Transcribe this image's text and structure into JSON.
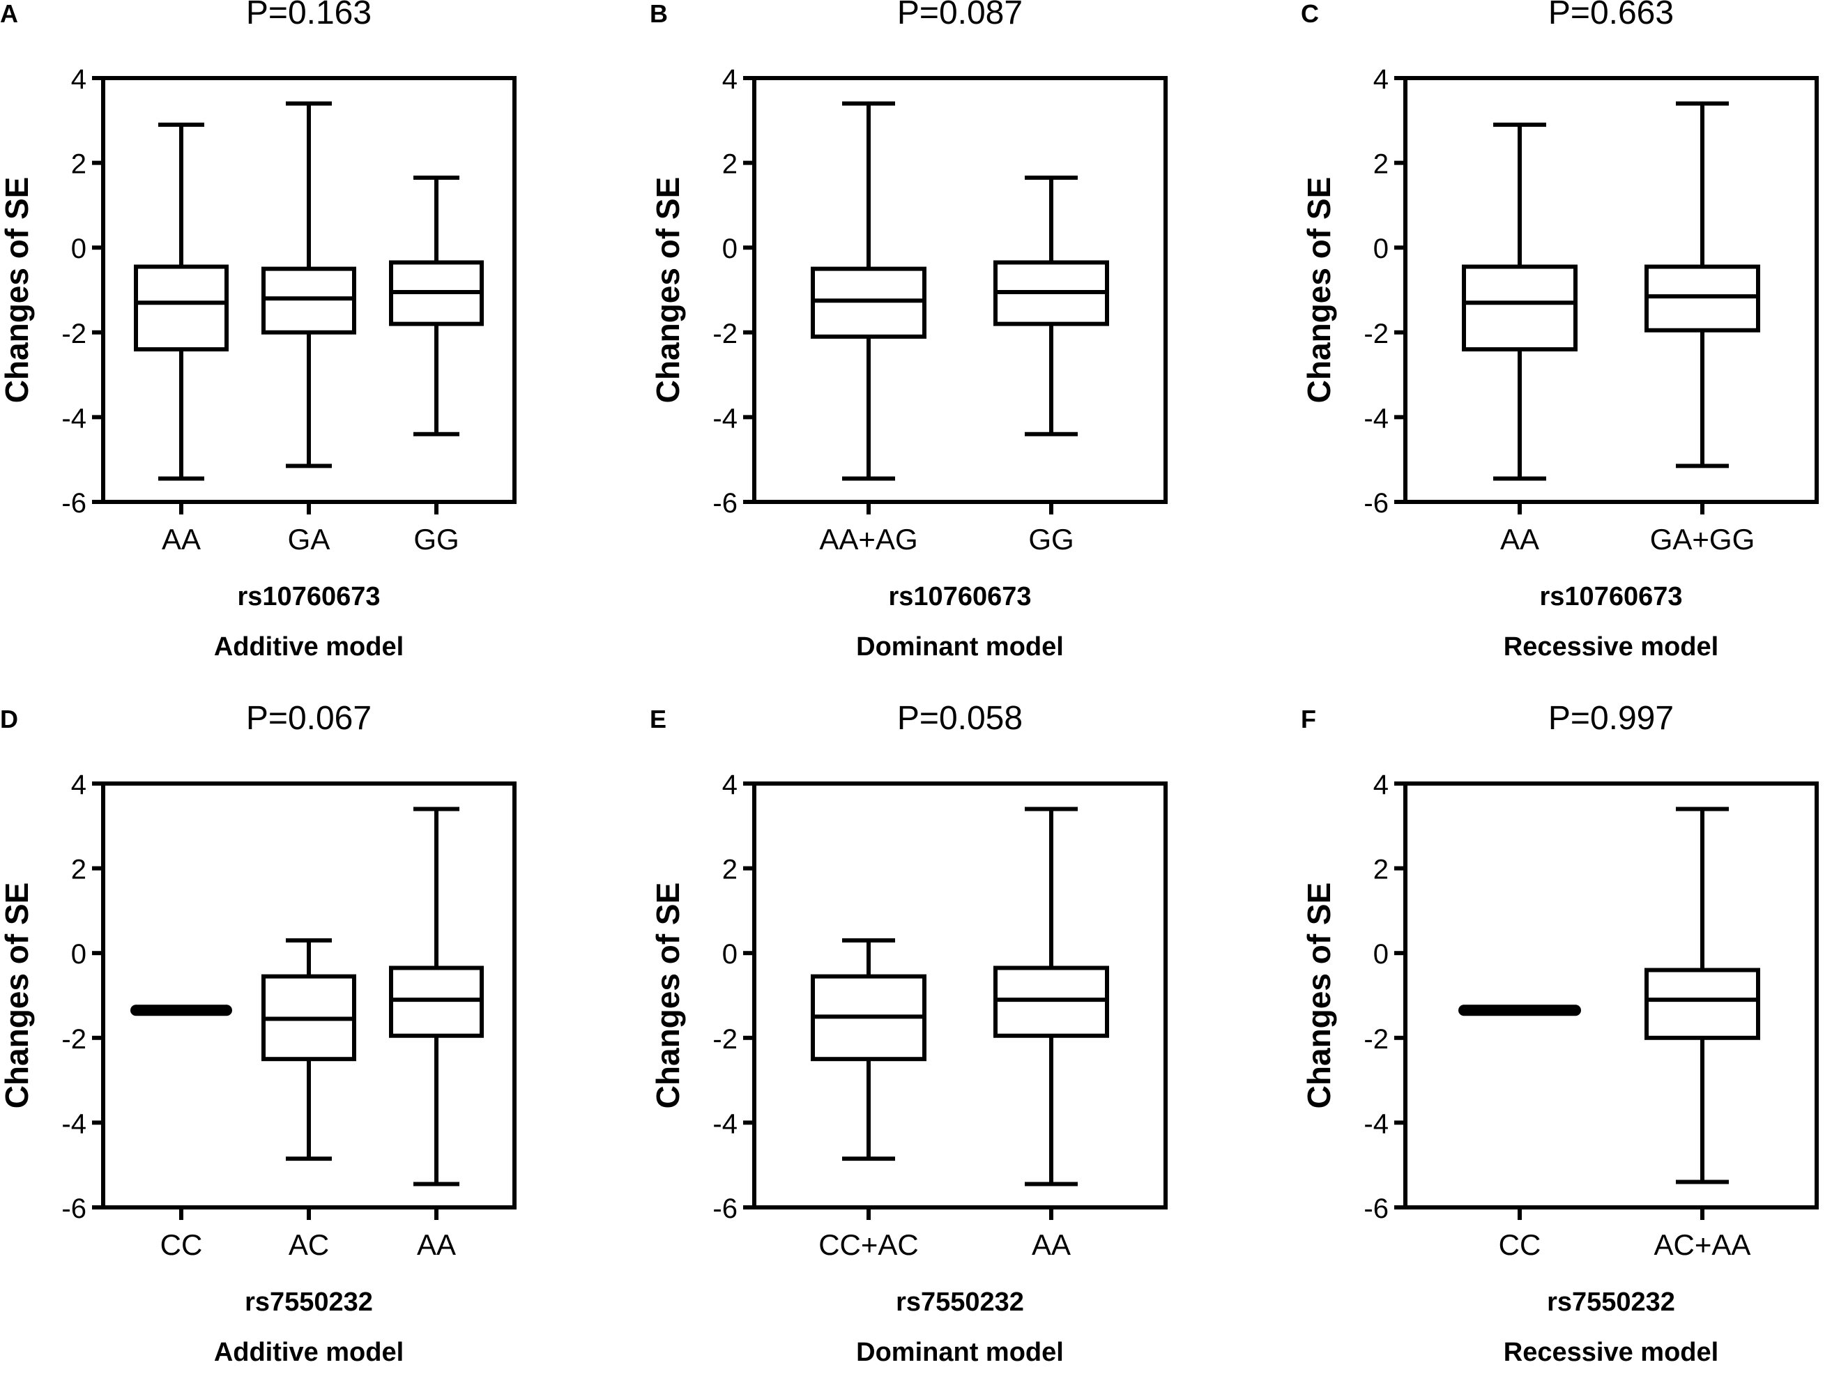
{
  "figure": {
    "stroke_color": "#000000",
    "background": "#ffffff"
  },
  "chart_data": [
    {
      "panel": "A",
      "type": "boxplot",
      "title": "P=0.163",
      "ylabel": "Changes of SE",
      "xlabel": "rs10760673",
      "model": "Additive model",
      "ylim": [
        -6,
        4
      ],
      "yticks": [
        "4",
        "2",
        "0",
        "-2",
        "-4",
        "-6"
      ],
      "categories": [
        "AA",
        "GA",
        "GG"
      ],
      "boxes": [
        {
          "min": -5.45,
          "q1": -2.4,
          "median": -1.3,
          "q3": -0.45,
          "max": 2.9
        },
        {
          "min": -5.15,
          "q1": -2.0,
          "median": -1.2,
          "q3": -0.5,
          "max": 3.4
        },
        {
          "min": -4.4,
          "q1": -1.8,
          "median": -1.05,
          "q3": -0.35,
          "max": 1.65
        }
      ]
    },
    {
      "panel": "B",
      "type": "boxplot",
      "title": "P=0.087",
      "ylabel": "Changes of SE",
      "xlabel": "rs10760673",
      "model": "Dominant model",
      "ylim": [
        -6,
        4
      ],
      "yticks": [
        "4",
        "2",
        "0",
        "-2",
        "-4",
        "-6"
      ],
      "categories": [
        "AA+AG",
        "GG"
      ],
      "boxes": [
        {
          "min": -5.45,
          "q1": -2.1,
          "median": -1.25,
          "q3": -0.5,
          "max": 3.4
        },
        {
          "min": -4.4,
          "q1": -1.8,
          "median": -1.05,
          "q3": -0.35,
          "max": 1.65
        }
      ]
    },
    {
      "panel": "C",
      "type": "boxplot",
      "title": "P=0.663",
      "ylabel": "Changes of SE",
      "xlabel": "rs10760673",
      "model": "Recessive model",
      "ylim": [
        -6,
        4
      ],
      "yticks": [
        "4",
        "2",
        "0",
        "-2",
        "-4",
        "-6"
      ],
      "categories": [
        "AA",
        "GA+GG"
      ],
      "boxes": [
        {
          "min": -5.45,
          "q1": -2.4,
          "median": -1.3,
          "q3": -0.45,
          "max": 2.9
        },
        {
          "min": -5.15,
          "q1": -1.95,
          "median": -1.15,
          "q3": -0.45,
          "max": 3.4
        }
      ]
    },
    {
      "panel": "D",
      "type": "boxplot",
      "title": "P=0.067",
      "ylabel": "Changes of SE",
      "xlabel": "rs7550232",
      "model": "Additive model",
      "ylim": [
        -6,
        4
      ],
      "yticks": [
        "4",
        "2",
        "0",
        "-2",
        "-4",
        "-6"
      ],
      "categories": [
        "CC",
        "AC",
        "AA"
      ],
      "boxes": [
        {
          "min": -1.35,
          "q1": -1.35,
          "median": -1.35,
          "q3": -1.35,
          "max": -1.35
        },
        {
          "min": -4.85,
          "q1": -2.5,
          "median": -1.55,
          "q3": -0.55,
          "max": 0.3
        },
        {
          "min": -5.45,
          "q1": -1.95,
          "median": -1.1,
          "q3": -0.35,
          "max": 3.4
        }
      ]
    },
    {
      "panel": "E",
      "type": "boxplot",
      "title": "P=0.058",
      "ylabel": "Changes of SE",
      "xlabel": "rs7550232",
      "model": "Dominant model",
      "ylim": [
        -6,
        4
      ],
      "yticks": [
        "4",
        "2",
        "0",
        "-2",
        "-4",
        "-6"
      ],
      "categories": [
        "CC+AC",
        "AA"
      ],
      "boxes": [
        {
          "min": -4.85,
          "q1": -2.5,
          "median": -1.5,
          "q3": -0.55,
          "max": 0.3
        },
        {
          "min": -5.45,
          "q1": -1.95,
          "median": -1.1,
          "q3": -0.35,
          "max": 3.4
        }
      ]
    },
    {
      "panel": "F",
      "type": "boxplot",
      "title": "P=0.997",
      "ylabel": "Changes of SE",
      "xlabel": "rs7550232",
      "model": "Recessive model",
      "ylim": [
        -6,
        4
      ],
      "yticks": [
        "4",
        "2",
        "0",
        "-2",
        "-4",
        "-6"
      ],
      "categories": [
        "CC",
        "AC+AA"
      ],
      "boxes": [
        {
          "min": -1.35,
          "q1": -1.35,
          "median": -1.35,
          "q3": -1.35,
          "max": -1.35
        },
        {
          "min": -5.4,
          "q1": -2.0,
          "median": -1.1,
          "q3": -0.4,
          "max": 3.4
        }
      ]
    }
  ]
}
